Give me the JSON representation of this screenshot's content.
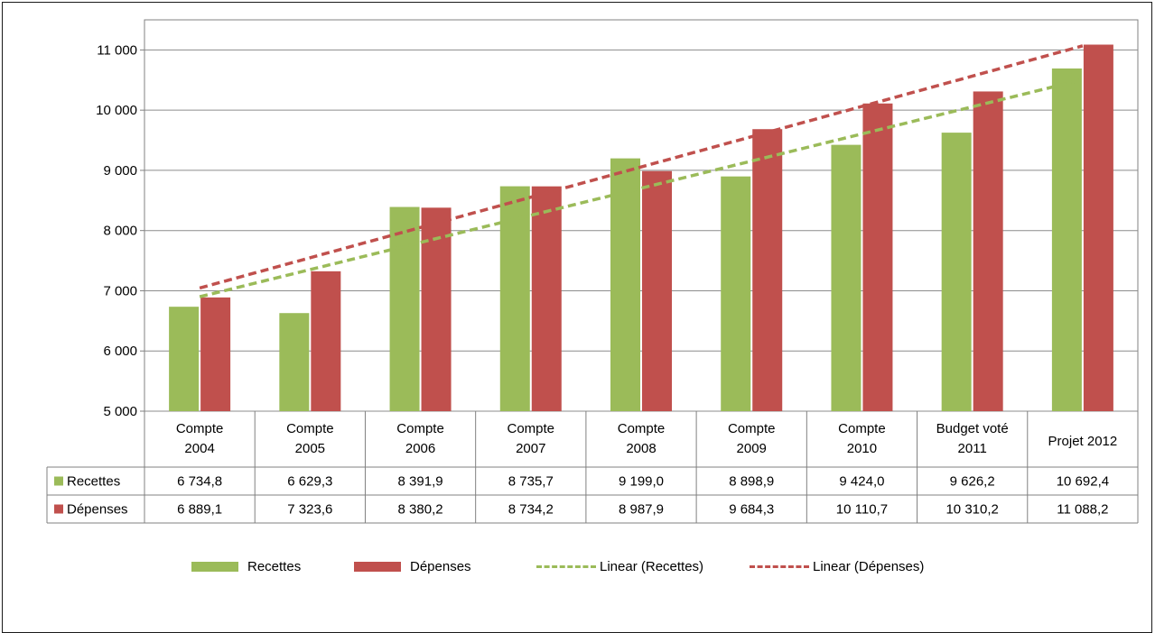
{
  "chart_data": {
    "type": "bar",
    "categories": [
      [
        "Compte",
        "2004"
      ],
      [
        "Compte",
        "2005"
      ],
      [
        "Compte",
        "2006"
      ],
      [
        "Compte",
        "2007"
      ],
      [
        "Compte",
        "2008"
      ],
      [
        "Compte",
        "2009"
      ],
      [
        "Compte",
        "2010"
      ],
      [
        "Budget voté",
        "2011"
      ],
      [
        "Projet 2012"
      ]
    ],
    "series": [
      {
        "name": "Recettes",
        "color": "#9bbb59",
        "values": [
          6734.8,
          6629.3,
          8391.9,
          8735.7,
          9199.0,
          8898.9,
          9424.0,
          9626.2,
          10692.4
        ],
        "labels": [
          "6 734,8",
          "6 629,3",
          "8 391,9",
          "8 735,7",
          "9 199,0",
          "8 898,9",
          "9 424,0",
          "9 626,2",
          "10 692,4"
        ]
      },
      {
        "name": "Dépenses",
        "color": "#c0504d",
        "values": [
          6889.1,
          7323.6,
          8380.2,
          8734.2,
          8987.9,
          9684.3,
          10110.7,
          10310.2,
          11088.2
        ],
        "labels": [
          "6 889,1",
          "7 323,6",
          "8 380,2",
          "8 734,2",
          "8 987,9",
          "9 684,3",
          "10 110,7",
          "10 310,2",
          "11 088,2"
        ]
      }
    ],
    "trendlines": [
      {
        "name": "Linear (Recettes)",
        "series": "Recettes",
        "type": "linear",
        "color": "#9bbb59",
        "dash": "dashed"
      },
      {
        "name": "Linear (Dépenses)",
        "series": "Dépenses",
        "type": "linear",
        "color": "#c0504d",
        "dash": "dashed"
      }
    ],
    "ylim": [
      5000,
      11500
    ],
    "yticks": [
      5000,
      6000,
      7000,
      8000,
      9000,
      10000,
      11000
    ],
    "ytick_labels": [
      "5 000",
      "6 000",
      "7 000",
      "8 000",
      "9 000",
      "10 000",
      "11 000"
    ],
    "grid": true,
    "data_table": true,
    "legend_position": "bottom"
  },
  "legend": {
    "recettes": "Recettes",
    "depenses": "Dépenses",
    "linear_recettes": "Linear (Recettes)",
    "linear_depenses": "Linear (Dépenses)"
  }
}
